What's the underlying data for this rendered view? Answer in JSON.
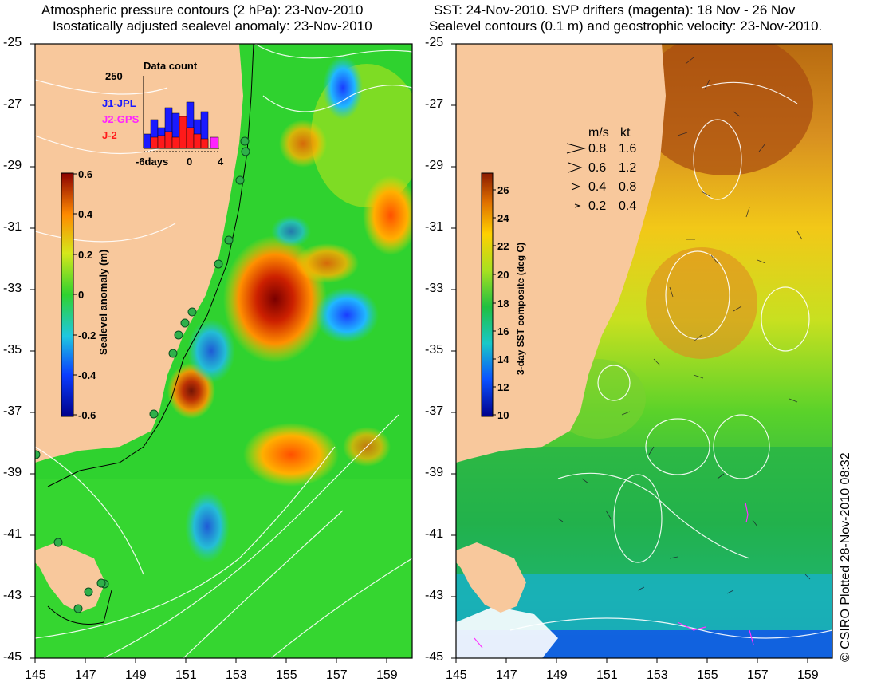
{
  "left_panel": {
    "title_line1": "Atmospheric pressure contours (2 hPa): 23-Nov-2010",
    "title_line2": "Isostatically adjusted sealevel anomaly: 23-Nov-2010",
    "colorbar": {
      "label": "Sealevel anomaly (m)",
      "ticks": [
        "0.6",
        "0.4",
        "0.2",
        "0",
        "-0.2",
        "-0.4",
        "-0.6"
      ],
      "range": [
        -0.6,
        0.6
      ]
    },
    "data_count": {
      "title": "Data count",
      "ymax_label": "250",
      "legend": [
        {
          "name": "J1-JPL",
          "color": "#1a1aff"
        },
        {
          "name": "J2-GPS",
          "color": "#ff22ff"
        },
        {
          "name": "J-2",
          "color": "#ff1a1a"
        }
      ],
      "xticks": [
        "-6days",
        "0",
        "4"
      ]
    }
  },
  "right_panel": {
    "title_line1": "SST: 24-Nov-2010. SVP drifters (magenta): 18 Nov - 26 Nov",
    "title_line2": "Sealevel contours (0.1 m) and geostrophic velocity: 23-Nov-2010.",
    "colorbar": {
      "label": "3-day SST composite (deg C)",
      "ticks": [
        "26",
        "24",
        "22",
        "20",
        "18",
        "16",
        "14",
        "12",
        "10"
      ],
      "range": [
        10,
        27
      ]
    },
    "velocity_legend": {
      "header_ms": "m/s",
      "header_kt": "kt",
      "rows": [
        {
          "ms": "0.8",
          "kt": "1.6"
        },
        {
          "ms": "0.6",
          "kt": "1.2"
        },
        {
          "ms": "0.4",
          "kt": "0.8"
        },
        {
          "ms": "0.2",
          "kt": "0.4"
        }
      ]
    }
  },
  "axes": {
    "lat_ticks": [
      "-25",
      "-27",
      "-29",
      "-31",
      "-33",
      "-35",
      "-37",
      "-39",
      "-41",
      "-43",
      "-45"
    ],
    "lon_ticks": [
      "145",
      "147",
      "149",
      "151",
      "153",
      "155",
      "157",
      "159"
    ],
    "lat_range": [
      -45,
      -25
    ],
    "lon_range": [
      145,
      160
    ]
  },
  "credit": "© CSIRO Plotted 28-Nov-2010 08:32",
  "colors": {
    "land": "#f8c89c",
    "sealevel_zero": "#2fd22f",
    "sst_mid": "#8ede2a",
    "coastline_contour": "#000000",
    "contour_white": "#ffffff"
  }
}
